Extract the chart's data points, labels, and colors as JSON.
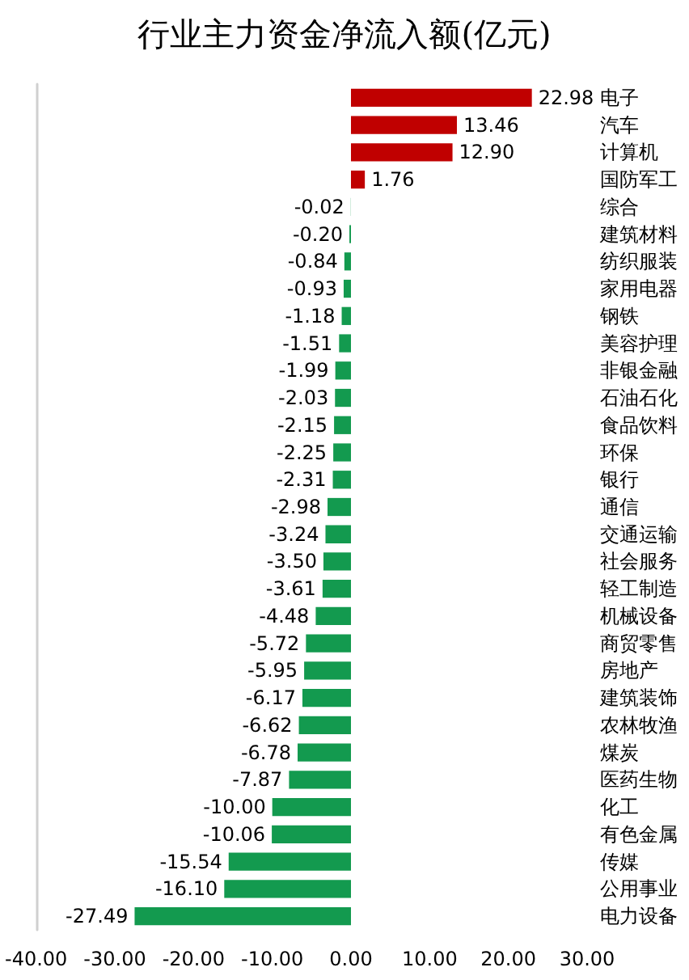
{
  "chart_data": {
    "type": "bar",
    "orientation": "horizontal",
    "title": "行业主力资金净流入额(亿元)",
    "categories": [
      "电子",
      "汽车",
      "计算机",
      "国防军工",
      "综合",
      "建筑材料",
      "纺织服装",
      "家用电器",
      "钢铁",
      "美容护理",
      "非银金融",
      "石油石化",
      "食品饮料",
      "环保",
      "银行",
      "通信",
      "交通运输",
      "社会服务",
      "轻工制造",
      "机械设备",
      "商贸零售",
      "房地产",
      "建筑装饰",
      "农林牧渔",
      "煤炭",
      "医药生物",
      "化工",
      "有色金属",
      "传媒",
      "公用事业",
      "电力设备"
    ],
    "values": [
      22.98,
      13.46,
      12.9,
      1.76,
      -0.02,
      -0.2,
      -0.84,
      -0.93,
      -1.18,
      -1.51,
      -1.99,
      -2.03,
      -2.15,
      -2.25,
      -2.31,
      -2.98,
      -3.24,
      -3.5,
      -3.61,
      -4.48,
      -5.72,
      -5.95,
      -6.17,
      -6.62,
      -6.78,
      -7.87,
      -10.0,
      -10.06,
      -15.54,
      -16.1,
      -27.49
    ],
    "value_labels": [
      "22.98",
      "13.46",
      "12.90",
      "1.76",
      "-0.02",
      "-0.20",
      "-0.84",
      "-0.93",
      "-1.18",
      "-1.51",
      "-1.99",
      "-2.03",
      "-2.15",
      "-2.25",
      "-2.31",
      "-2.98",
      "-3.24",
      "-3.50",
      "-3.61",
      "-4.48",
      "-5.72",
      "-5.95",
      "-6.17",
      "-6.62",
      "-6.78",
      "-7.87",
      "-10.00",
      "-10.06",
      "-15.54",
      "-16.10",
      "-27.49"
    ],
    "colors": [
      "#c00000",
      "#c00000",
      "#c00000",
      "#c00000",
      "#139a4f",
      "#139a4f",
      "#139a4f",
      "#139a4f",
      "#139a4f",
      "#139a4f",
      "#139a4f",
      "#139a4f",
      "#139a4f",
      "#139a4f",
      "#139a4f",
      "#139a4f",
      "#139a4f",
      "#139a4f",
      "#139a4f",
      "#139a4f",
      "#139a4f",
      "#139a4f",
      "#139a4f",
      "#139a4f",
      "#139a4f",
      "#139a4f",
      "#139a4f",
      "#139a4f",
      "#139a4f",
      "#139a4f",
      "#139a4f"
    ],
    "xlim": [
      -40,
      30
    ],
    "xticks": [
      {
        "value": -40,
        "label": "-40.00"
      },
      {
        "value": -30,
        "label": "-30.00"
      },
      {
        "value": -20,
        "label": "-20.00"
      },
      {
        "value": -10,
        "label": "-10.00"
      },
      {
        "value": 0,
        "label": "0.00"
      },
      {
        "value": 10,
        "label": "10.00"
      },
      {
        "value": 20,
        "label": "20.00"
      },
      {
        "value": 30,
        "label": "30.00"
      }
    ],
    "grid": false
  }
}
